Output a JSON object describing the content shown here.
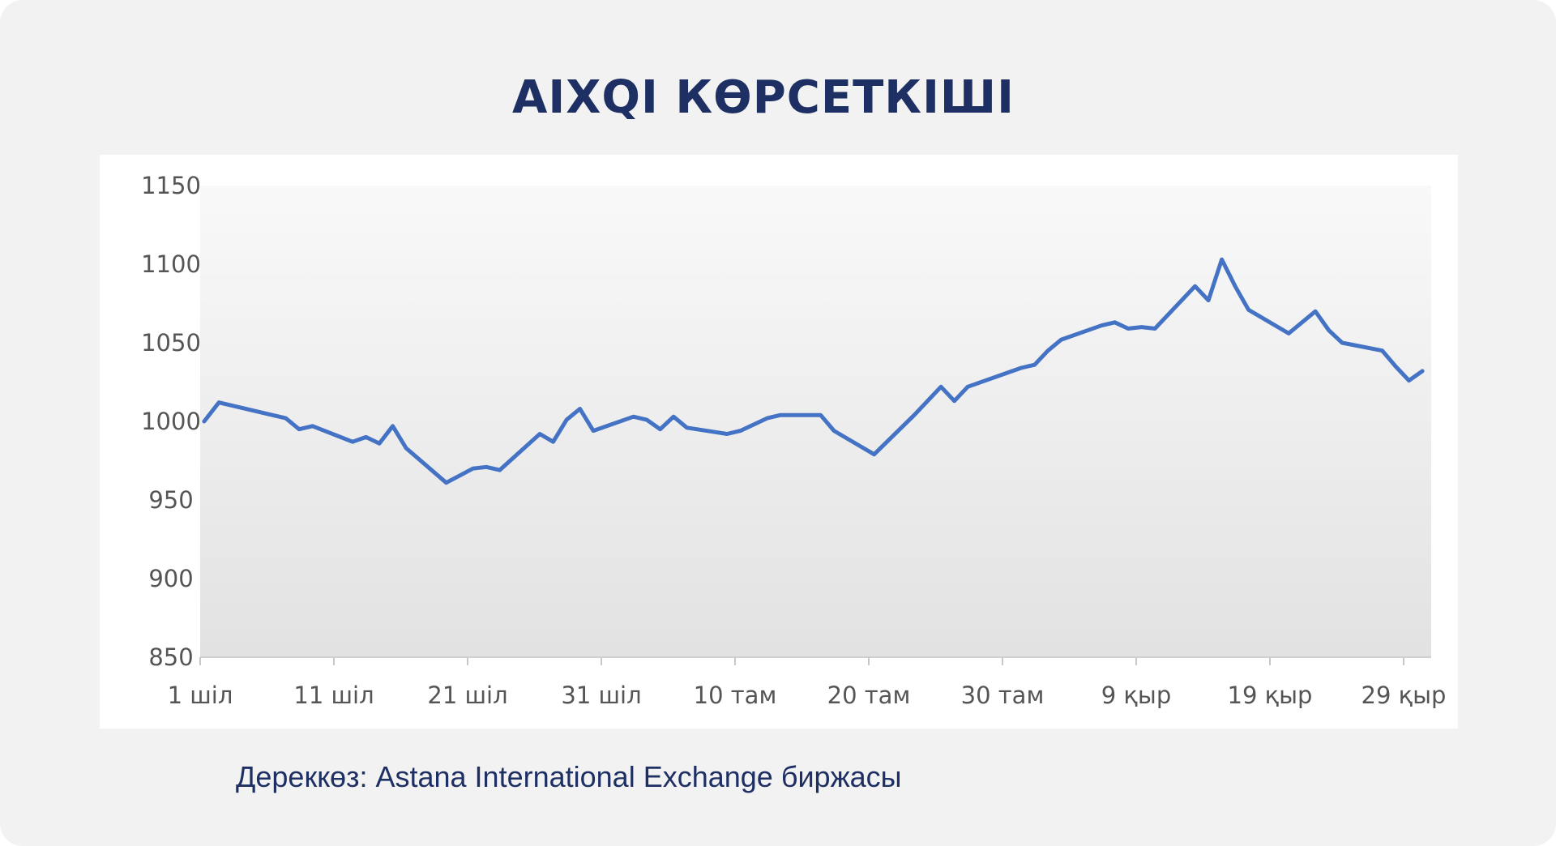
{
  "title": "AIXQI КӨРСЕТКІШІ",
  "source": "Дереккөз: Astana International Exchange биржасы",
  "colors": {
    "background": "#f2f2f2",
    "title": "#1e2f63",
    "line": "#4472c4",
    "plot_top": "#f9f9f9",
    "plot_bottom": "#e2e2e2"
  },
  "chart_data": {
    "type": "line",
    "title": "AIXQI КӨРСЕТКІШІ",
    "xlabel": "",
    "ylabel": "",
    "ylim": [
      850,
      1150
    ],
    "y_ticks": [
      850,
      900,
      950,
      1000,
      1050,
      1100,
      1150
    ],
    "x_ticks": [
      {
        "day": 0,
        "label": "1 шіл"
      },
      {
        "day": 10,
        "label": "11 шіл"
      },
      {
        "day": 20,
        "label": "21 шіл"
      },
      {
        "day": 30,
        "label": "31 шіл"
      },
      {
        "day": 40,
        "label": "10 там"
      },
      {
        "day": 50,
        "label": "20 там"
      },
      {
        "day": 60,
        "label": "30 там"
      },
      {
        "day": 70,
        "label": "9 қыр"
      },
      {
        "day": 80,
        "label": "19 қыр"
      },
      {
        "day": 90,
        "label": "29 қыр"
      }
    ],
    "x_max": 92,
    "grid": false,
    "series": [
      {
        "name": "",
        "points": [
          [
            0.3,
            1000
          ],
          [
            1.4,
            1012
          ],
          [
            6.4,
            1002
          ],
          [
            7.4,
            995
          ],
          [
            8.4,
            997
          ],
          [
            11.4,
            987
          ],
          [
            12.4,
            990
          ],
          [
            13.4,
            986
          ],
          [
            14.4,
            997
          ],
          [
            15.4,
            983
          ],
          [
            18.4,
            961
          ],
          [
            20.4,
            970
          ],
          [
            21.4,
            971
          ],
          [
            22.4,
            969
          ],
          [
            25.4,
            992
          ],
          [
            26.4,
            987
          ],
          [
            27.4,
            1001
          ],
          [
            28.4,
            1008
          ],
          [
            29.4,
            994
          ],
          [
            32.4,
            1003
          ],
          [
            33.4,
            1001
          ],
          [
            34.4,
            995
          ],
          [
            35.4,
            1003
          ],
          [
            36.4,
            996
          ],
          [
            39.4,
            992
          ],
          [
            40.4,
            994
          ],
          [
            41.4,
            998
          ],
          [
            42.4,
            1002
          ],
          [
            43.4,
            1004
          ],
          [
            46.4,
            1004
          ],
          [
            47.4,
            994
          ],
          [
            49.4,
            984
          ],
          [
            50.4,
            979
          ],
          [
            53.4,
            1004
          ],
          [
            55.4,
            1022
          ],
          [
            56.4,
            1013
          ],
          [
            57.4,
            1022
          ],
          [
            61.4,
            1034
          ],
          [
            62.4,
            1036
          ],
          [
            63.4,
            1045
          ],
          [
            64.4,
            1052
          ],
          [
            67.4,
            1061
          ],
          [
            68.4,
            1063
          ],
          [
            69.4,
            1059
          ],
          [
            70.4,
            1060
          ],
          [
            71.4,
            1059
          ],
          [
            73.4,
            1077
          ],
          [
            74.4,
            1086
          ],
          [
            75.4,
            1077
          ],
          [
            76.4,
            1103
          ],
          [
            77.4,
            1086
          ],
          [
            78.4,
            1071
          ],
          [
            81.4,
            1056
          ],
          [
            82.4,
            1063
          ],
          [
            83.4,
            1070
          ],
          [
            84.4,
            1058
          ],
          [
            85.4,
            1050
          ],
          [
            88.4,
            1045
          ],
          [
            89.4,
            1035
          ],
          [
            90.4,
            1026
          ],
          [
            91.4,
            1032
          ]
        ]
      }
    ]
  }
}
